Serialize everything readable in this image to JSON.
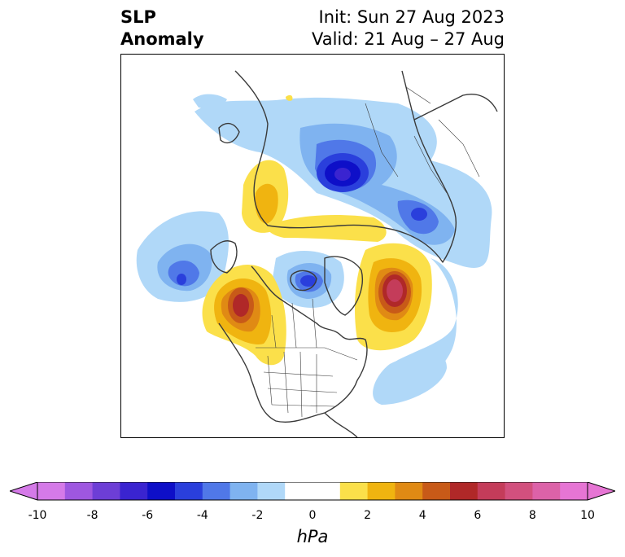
{
  "title": {
    "left_line1": "SLP",
    "left_line2": "Anomaly",
    "right_line1": "Init: Sun 27 Aug 2023",
    "right_line2": "Valid: 21 Aug – 27 Aug"
  },
  "colorbar": {
    "unit": "hPa",
    "ticks": [
      "-10",
      "-8",
      "-6",
      "-4",
      "-2",
      "0",
      "2",
      "4",
      "6",
      "8",
      "10"
    ],
    "colors": [
      "#d57ae8",
      "#9e57e0",
      "#6d3ed6",
      "#3a24d0",
      "#0e0fc8",
      "#2a3fdc",
      "#5078e8",
      "#7fb3f0",
      "#b0d8f8",
      "#ffffff",
      "#ffffff",
      "#fbe04a",
      "#f0b410",
      "#e08a14",
      "#c85a18",
      "#b02828",
      "#c43c5a",
      "#d2507e",
      "#dc62a8",
      "#e675d4"
    ],
    "under_color": "#d57ae8",
    "over_color": "#e675d4"
  },
  "map": {
    "projection": "north-polar-stereographic",
    "field": "sea level pressure anomaly",
    "colors": {
      "lightblue": "#b0d8f8",
      "blue1": "#7fb3f0",
      "blue2": "#5078e8",
      "blue3": "#2a3fdc",
      "blue4": "#0e0fc8",
      "yellow": "#fbe04a",
      "gold": "#f0b410",
      "orange": "#e08a14",
      "redorange": "#c85a18",
      "red": "#b02828",
      "rose": "#c43c5a",
      "coast": "#3a3a3a"
    }
  }
}
